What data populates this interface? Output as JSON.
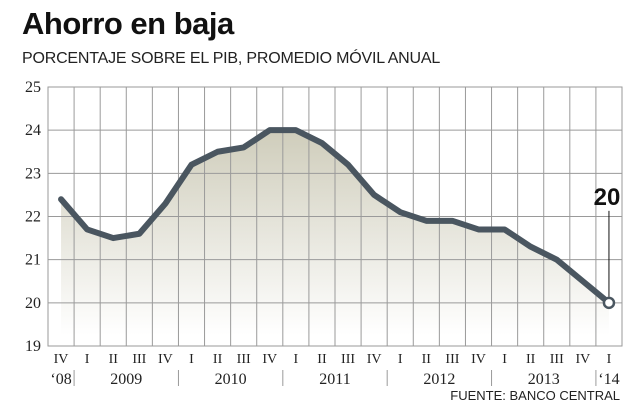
{
  "title": "Ahorro en baja",
  "subtitle": "PORCENTAJE SOBRE EL PIB, PROMEDIO MÓVIL ANUAL",
  "source": "FUENTE: BANCO CENTRAL",
  "colors": {
    "line": "#4a5660",
    "area_top": "#cfcdbb",
    "area_bottom": "#ffffff",
    "grid": "#9a9a9a",
    "marker_fill": "#ffffff"
  },
  "chart_data": {
    "type": "area",
    "title": "Ahorro en baja",
    "subtitle": "PORCENTAJE SOBRE EL PIB, PROMEDIO MÓVIL ANUAL",
    "xlabel": "",
    "ylabel": "",
    "ylim": [
      19,
      25
    ],
    "yticks": [
      "19",
      "20",
      "21",
      "22",
      "23",
      "24",
      "25"
    ],
    "categories": [
      "IV",
      "I",
      "II",
      "III",
      "IV",
      "I",
      "II",
      "III",
      "IV",
      "I",
      "II",
      "III",
      "IV",
      "I",
      "II",
      "III",
      "IV",
      "I",
      "II",
      "III",
      "IV",
      "I"
    ],
    "years": [
      {
        "label": "‘08",
        "quarters": 1
      },
      {
        "label": "2009",
        "quarters": 4
      },
      {
        "label": "2010",
        "quarters": 4
      },
      {
        "label": "2011",
        "quarters": 4
      },
      {
        "label": "2012",
        "quarters": 4
      },
      {
        "label": "2013",
        "quarters": 4
      },
      {
        "label": "‘14",
        "quarters": 1
      }
    ],
    "values": [
      22.4,
      21.7,
      21.5,
      21.6,
      22.3,
      23.2,
      23.5,
      23.6,
      24.0,
      24.0,
      23.7,
      23.2,
      22.5,
      22.1,
      21.9,
      21.9,
      21.7,
      21.7,
      21.3,
      21.0,
      20.5,
      20.0
    ],
    "annotation": {
      "text": "20",
      "index": 21
    },
    "grid": true,
    "legend": "none"
  }
}
